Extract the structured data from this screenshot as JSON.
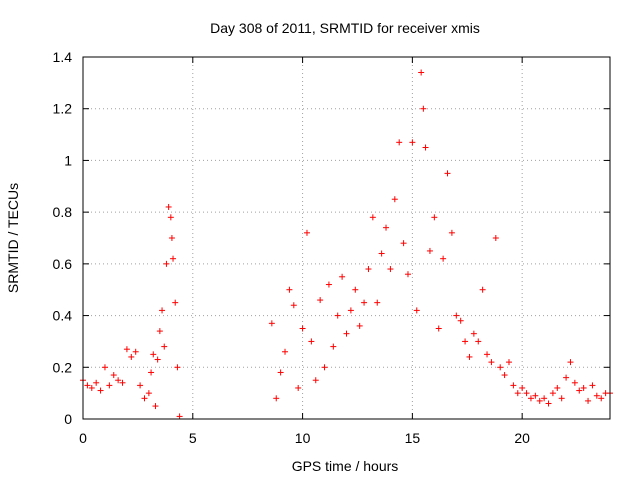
{
  "chart_data": {
    "type": "scatter",
    "title": "Day 308 of 2011, SRMTID for receiver xmis",
    "xlabel": "GPS time / hours",
    "ylabel": "SRMTID / TECUs",
    "xlim": [
      0,
      24
    ],
    "ylim": [
      0,
      1.4
    ],
    "xticks": [
      0,
      5,
      10,
      15,
      20
    ],
    "yticks": [
      0,
      0.2,
      0.4,
      0.6,
      0.8,
      1,
      1.2,
      1.4
    ],
    "xtick_labels": [
      "0",
      "5",
      "10",
      "15",
      "20"
    ],
    "ytick_labels": [
      "0",
      "0.2",
      "0.4",
      "0.6",
      "0.8",
      "1",
      "1.2",
      "1.4"
    ],
    "grid": true,
    "marker": "+",
    "color": "#ff0000",
    "series": [
      {
        "name": "SRMTID",
        "x": [
          0.0,
          0.2,
          0.4,
          0.6,
          0.8,
          1.0,
          1.2,
          1.4,
          1.6,
          1.8,
          2.0,
          2.2,
          2.4,
          2.6,
          2.8,
          3.0,
          3.1,
          3.2,
          3.3,
          3.4,
          3.5,
          3.6,
          3.7,
          3.8,
          3.9,
          4.0,
          4.05,
          4.1,
          4.2,
          4.3,
          4.4,
          8.6,
          8.8,
          9.0,
          9.2,
          9.4,
          9.6,
          9.8,
          10.0,
          10.2,
          10.4,
          10.6,
          10.8,
          11.0,
          11.2,
          11.4,
          11.6,
          11.8,
          12.0,
          12.2,
          12.4,
          12.6,
          12.8,
          13.0,
          13.2,
          13.4,
          13.6,
          13.8,
          14.0,
          14.2,
          14.4,
          14.6,
          14.8,
          15.0,
          15.2,
          15.4,
          15.5,
          15.6,
          15.8,
          16.0,
          16.2,
          16.4,
          16.6,
          16.8,
          17.0,
          17.2,
          17.4,
          17.6,
          17.8,
          18.0,
          18.2,
          18.4,
          18.6,
          18.8,
          19.0,
          19.2,
          19.4,
          19.6,
          19.8,
          20.0,
          20.2,
          20.4,
          20.6,
          20.8,
          21.0,
          21.2,
          21.4,
          21.6,
          21.8,
          22.0,
          22.2,
          22.4,
          22.6,
          22.8,
          23.0,
          23.2,
          23.4,
          23.6,
          23.8,
          24.0
        ],
        "y": [
          0.15,
          0.13,
          0.12,
          0.14,
          0.11,
          0.2,
          0.13,
          0.17,
          0.15,
          0.14,
          0.27,
          0.24,
          0.26,
          0.13,
          0.08,
          0.1,
          0.18,
          0.25,
          0.05,
          0.23,
          0.34,
          0.42,
          0.28,
          0.6,
          0.82,
          0.78,
          0.7,
          0.62,
          0.45,
          0.2,
          0.01,
          0.37,
          0.08,
          0.18,
          0.26,
          0.5,
          0.44,
          0.12,
          0.35,
          0.72,
          0.3,
          0.15,
          0.46,
          0.2,
          0.52,
          0.28,
          0.4,
          0.55,
          0.33,
          0.42,
          0.5,
          0.36,
          0.45,
          0.58,
          0.78,
          0.45,
          0.64,
          0.74,
          0.58,
          0.85,
          1.07,
          0.68,
          0.56,
          1.07,
          0.42,
          1.34,
          1.2,
          1.05,
          0.65,
          0.78,
          0.35,
          0.62,
          0.95,
          0.72,
          0.4,
          0.38,
          0.3,
          0.24,
          0.33,
          0.3,
          0.5,
          0.25,
          0.22,
          0.7,
          0.2,
          0.17,
          0.22,
          0.13,
          0.1,
          0.12,
          0.1,
          0.08,
          0.09,
          0.07,
          0.08,
          0.06,
          0.1,
          0.12,
          0.08,
          0.16,
          0.22,
          0.14,
          0.11,
          0.12,
          0.07,
          0.13,
          0.09,
          0.08,
          0.1,
          0.1
        ]
      }
    ]
  }
}
